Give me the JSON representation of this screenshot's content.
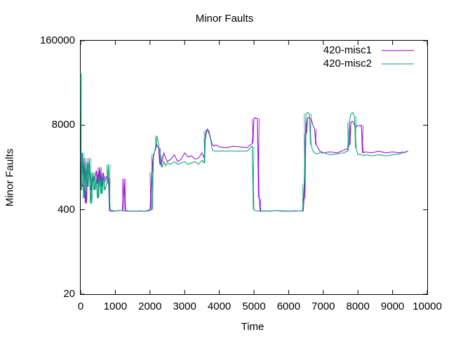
{
  "chart_data": {
    "type": "line",
    "title": "Minor Faults",
    "xlabel": "Time",
    "ylabel": "Minor Faults",
    "xlim": [
      0,
      10000
    ],
    "ylim": [
      20,
      160000
    ],
    "yscale": "log",
    "xticks": [
      "0",
      "1000",
      "2000",
      "3000",
      "4000",
      "5000",
      "6000",
      "7000",
      "8000",
      "9000",
      "10000"
    ],
    "yticks": [
      {
        "value": 160000,
        "label": "160000"
      },
      {
        "value": 8000,
        "label": "8000"
      },
      {
        "value": 400,
        "label": "400"
      },
      {
        "value": 20,
        "label": "20"
      }
    ],
    "grid": false,
    "legend_position": "top-right",
    "series": [
      {
        "name": "420-misc1",
        "color": "#9400d3",
        "x": [
          0,
          30,
          60,
          100,
          150,
          200,
          250,
          300,
          350,
          400,
          450,
          500,
          550,
          600,
          650,
          700,
          750,
          800,
          850,
          900,
          1000,
          1100,
          1200,
          1250,
          1300,
          1400,
          1500,
          1600,
          1700,
          1800,
          1900,
          2000,
          2050,
          2100,
          2150,
          2200,
          2250,
          2300,
          2350,
          2400,
          2450,
          2500,
          2600,
          2700,
          2800,
          2900,
          3000,
          3100,
          3200,
          3300,
          3400,
          3500,
          3560,
          3600,
          3650,
          3700,
          3750,
          3800,
          3850,
          3900,
          4000,
          4200,
          4400,
          4600,
          4800,
          4950,
          5000,
          5030,
          5050,
          5100,
          5150,
          5200,
          5300,
          5400,
          5500,
          5600,
          5800,
          6000,
          6200,
          6400,
          6450,
          6500,
          6550,
          6600,
          6650,
          6700,
          6750,
          6800,
          6900,
          7000,
          7200,
          7400,
          7600,
          7700,
          7750,
          7800,
          7850,
          7900,
          7950,
          8000,
          8050,
          8100,
          8150,
          8200,
          8400,
          8600,
          8800,
          9000,
          9200,
          9300,
          9350,
          9400,
          9450
        ],
        "y": [
          3000,
          1000,
          900,
          2500,
          500,
          2200,
          1500,
          800,
          1400,
          1100,
          1600,
          1000,
          1800,
          900,
          1500,
          1100,
          1300,
          1200,
          380,
          380,
          380,
          390,
          385,
          1200,
          390,
          380,
          380,
          380,
          380,
          380,
          385,
          400,
          1500,
          2800,
          3300,
          4000,
          3500,
          2000,
          2200,
          3000,
          2500,
          2200,
          2400,
          2800,
          2200,
          2400,
          3000,
          2600,
          2700,
          2400,
          2500,
          3000,
          2500,
          5000,
          7000,
          6500,
          5000,
          4000,
          3800,
          4000,
          3700,
          3600,
          3800,
          3700,
          3600,
          4200,
          10000,
          10500,
          10200,
          10200,
          600,
          380,
          380,
          385,
          380,
          390,
          380,
          380,
          385,
          380,
          600,
          6000,
          10500,
          10300,
          10000,
          8000,
          7000,
          4000,
          3200,
          3000,
          3100,
          3000,
          3300,
          3500,
          4000,
          9000,
          9200,
          8000,
          7500,
          8000,
          7800,
          8000,
          3000,
          3100,
          3000,
          3200,
          3000,
          3100,
          3000,
          3100,
          3000,
          3200,
          3100
        ],
        "emphasis": "spiky"
      },
      {
        "name": "420-misc2",
        "color": "#009e73",
        "x": [
          0,
          20,
          50,
          100,
          150,
          200,
          250,
          300,
          350,
          400,
          450,
          500,
          550,
          600,
          650,
          700,
          750,
          800,
          850,
          900,
          1000,
          1100,
          1200,
          1300,
          1400,
          1500,
          1600,
          1700,
          1800,
          1900,
          2000,
          2050,
          2100,
          2150,
          2200,
          2250,
          2300,
          2350,
          2400,
          2450,
          2500,
          2600,
          2700,
          2800,
          2900,
          3000,
          3100,
          3200,
          3300,
          3400,
          3500,
          3560,
          3600,
          3650,
          3700,
          3750,
          3800,
          3850,
          3900,
          4000,
          4200,
          4400,
          4600,
          4800,
          4950,
          5000,
          5030,
          5050,
          5100,
          5150,
          5200,
          5300,
          5400,
          5500,
          5600,
          5800,
          6000,
          6200,
          6400,
          6450,
          6500,
          6550,
          6600,
          6650,
          6700,
          6750,
          6800,
          6900,
          7000,
          7200,
          7400,
          7600,
          7700,
          7750,
          7800,
          7850,
          7900,
          7950,
          8000,
          8050,
          8100,
          8150,
          8200,
          8400,
          8600,
          8800,
          9000,
          9200,
          9300
        ],
        "y": [
          50000,
          800,
          3000,
          600,
          2200,
          900,
          2500,
          500,
          1500,
          800,
          1200,
          600,
          1400,
          700,
          1300,
          800,
          1000,
          2000,
          400,
          390,
          380,
          390,
          385,
          380,
          380,
          380,
          380,
          385,
          380,
          380,
          390,
          400,
          2500,
          3500,
          5500,
          4000,
          2800,
          1800,
          2200,
          1900,
          2100,
          2000,
          2200,
          2000,
          2100,
          2200,
          2000,
          2100,
          2200,
          2000,
          2300,
          2100,
          6500,
          6800,
          6000,
          4800,
          3300,
          3200,
          3200,
          3200,
          3200,
          3200,
          3200,
          3200,
          3800,
          400,
          390,
          385,
          385,
          380,
          380,
          385,
          380,
          380,
          390,
          385,
          380,
          380,
          385,
          1000,
          12000,
          12500,
          12000,
          4000,
          3200,
          3000,
          2900,
          3000,
          3000,
          2800,
          2900,
          3000,
          3200,
          9000,
          12000,
          12500,
          11000,
          3500,
          2800,
          2900,
          2800,
          2700,
          2800,
          2700,
          2800,
          2700,
          2800,
          2900,
          3000
        ],
        "emphasis": "dense"
      }
    ]
  }
}
